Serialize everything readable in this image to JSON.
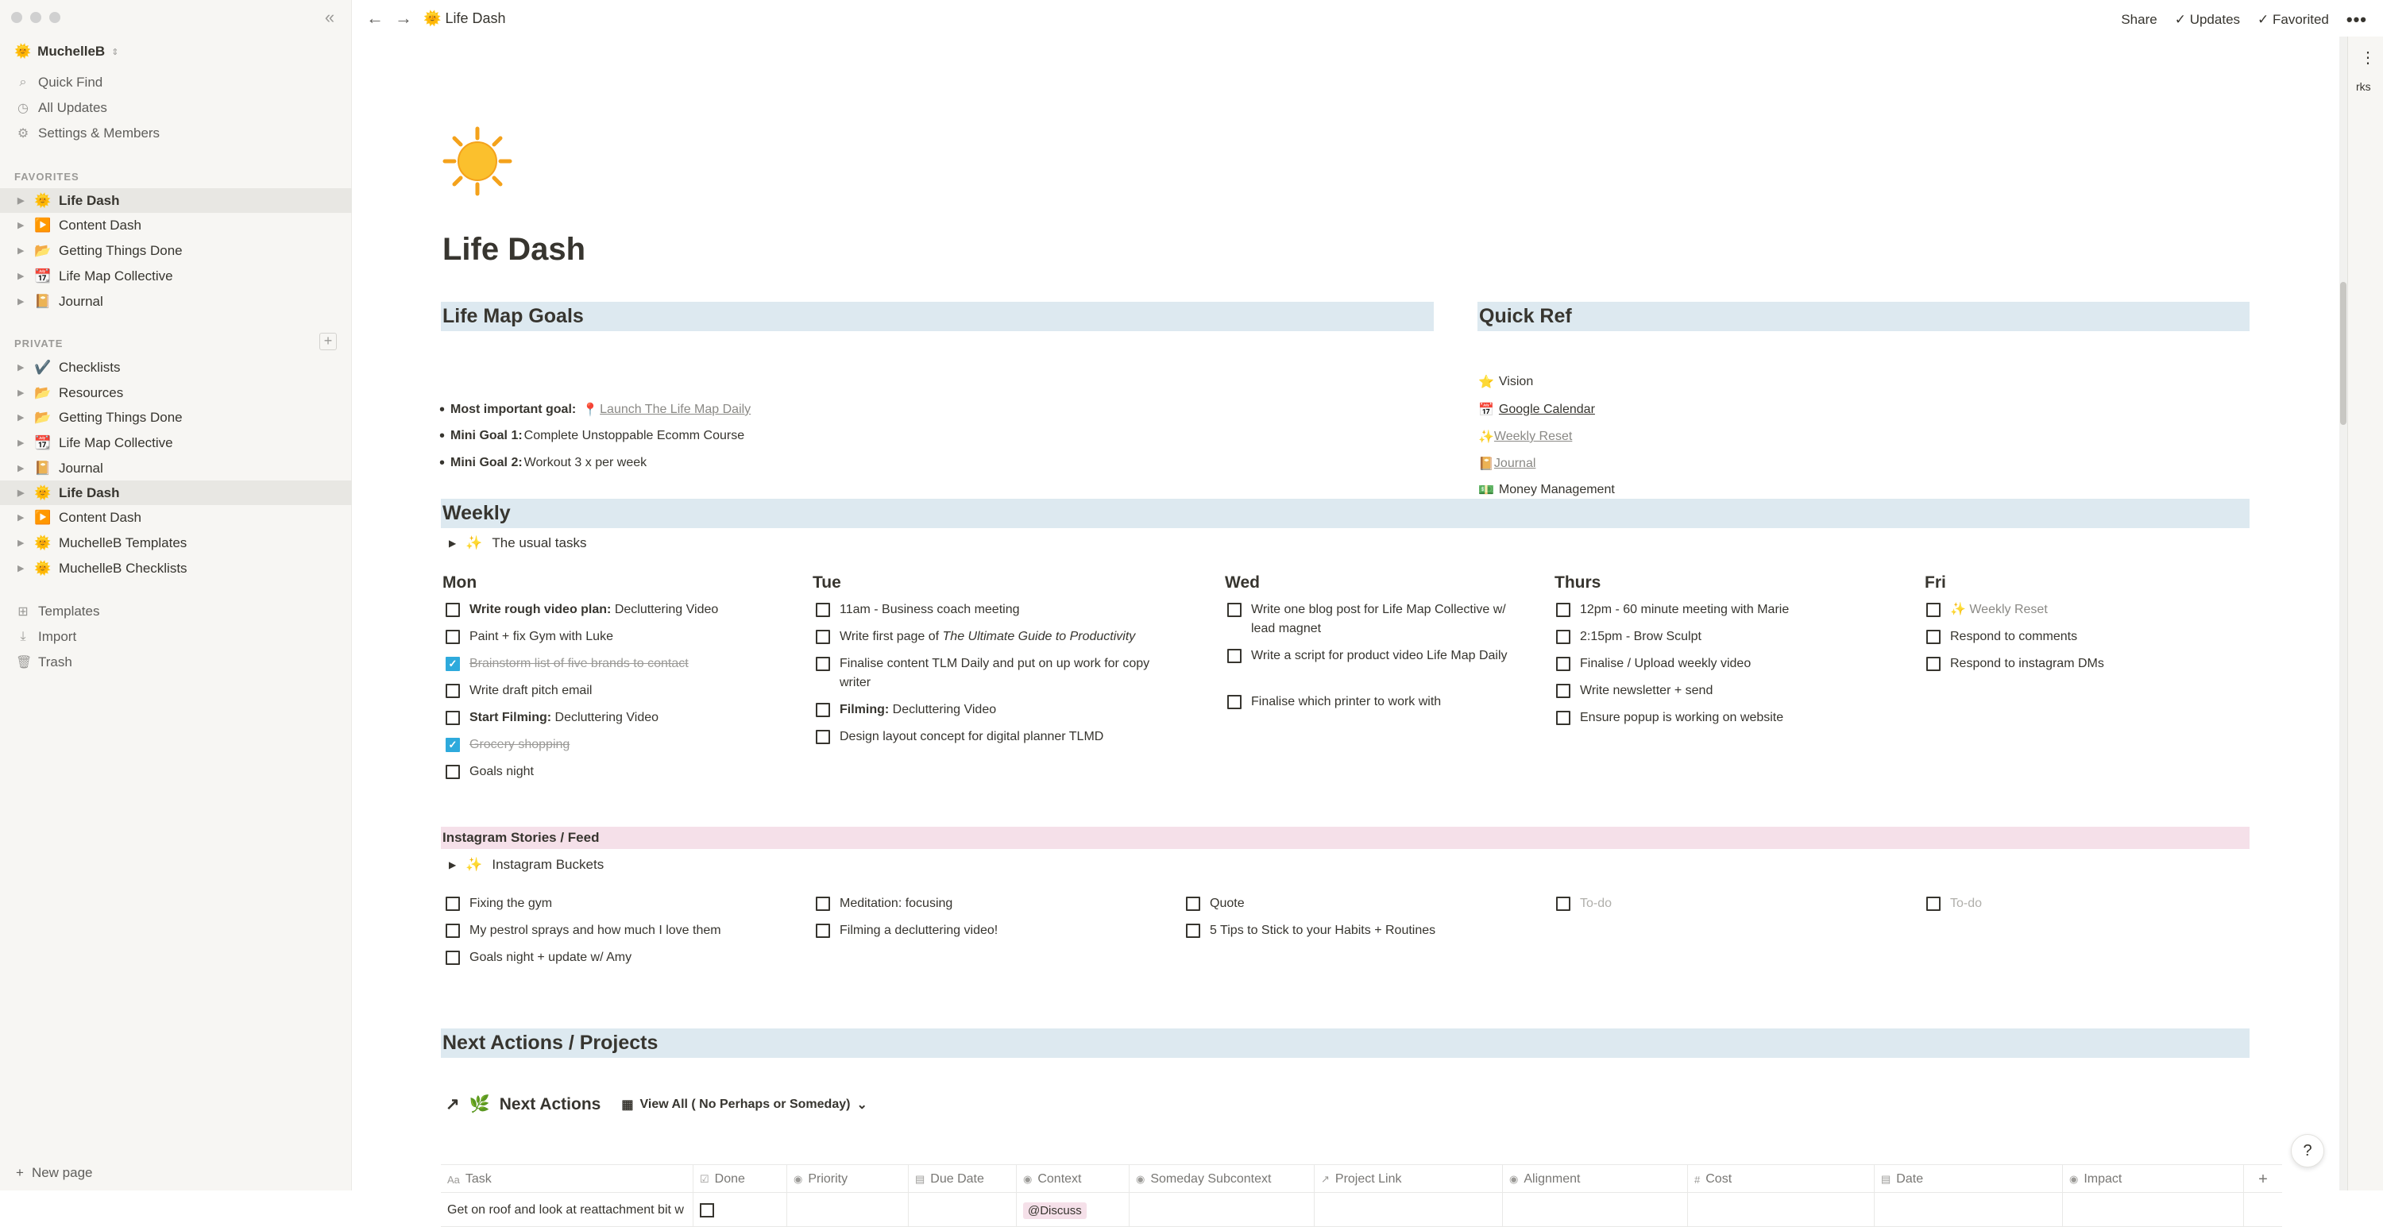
{
  "sidebar": {
    "workspace": "MuchelleB",
    "quick_find": "Quick Find",
    "all_updates": "All Updates",
    "settings": "Settings & Members",
    "favorites_title": "FAVORITES",
    "favorites": [
      {
        "emoji": "🌞",
        "label": "Life Dash"
      },
      {
        "emoji": "▶️",
        "label": "Content Dash"
      },
      {
        "emoji": "📂",
        "label": "Getting Things Done"
      },
      {
        "emoji": "📆",
        "label": "Life Map Collective"
      },
      {
        "emoji": "📔",
        "label": "Journal"
      }
    ],
    "private_title": "PRIVATE",
    "private": [
      {
        "emoji": "✔️",
        "label": "Checklists"
      },
      {
        "emoji": "📂",
        "label": "Resources"
      },
      {
        "emoji": "📂",
        "label": "Getting Things Done"
      },
      {
        "emoji": "📆",
        "label": "Life Map Collective"
      },
      {
        "emoji": "📔",
        "label": "Journal"
      },
      {
        "emoji": "🌞",
        "label": "Life Dash"
      },
      {
        "emoji": "▶️",
        "label": "Content Dash"
      },
      {
        "emoji": "🌞",
        "label": "MuchelleB Templates"
      },
      {
        "emoji": "🌞",
        "label": "MuchelleB Checklists"
      }
    ],
    "templates": "Templates",
    "import": "Import",
    "trash": "Trash",
    "new_page": "New page"
  },
  "topbar": {
    "breadcrumb": "Life Dash",
    "share": "Share",
    "updates": "Updates",
    "favorited": "Favorited"
  },
  "peek_text": "rks",
  "page": {
    "title": "Life Dash",
    "goals_heading": "Life Map Goals",
    "goals": [
      {
        "label": "Most important goal:",
        "emoji": "📍",
        "text": "Launch The Life Map Daily"
      },
      {
        "label": "Mini Goal 1:",
        "text": "Complete Unstoppable Ecomm Course"
      },
      {
        "label": "Mini Goal 2:",
        "text": "Workout 3 x per week"
      }
    ],
    "quickref_heading": "Quick Ref",
    "quickref": [
      {
        "emoji": "⭐",
        "text": "Vision"
      },
      {
        "emoji": "📅",
        "text": "Google Calendar"
      },
      {
        "emoji": "✨",
        "text": "Weekly Reset"
      },
      {
        "emoji": "📔",
        "text": "Journal"
      },
      {
        "emoji": "💵",
        "text": "Money Management"
      }
    ],
    "weekly_heading": "Weekly",
    "weekly_toggle": "The usual tasks",
    "days": [
      "Mon",
      "Tue",
      "Wed",
      "Thurs",
      "Fri"
    ],
    "mon": [
      {
        "bold": "Write rough video plan:",
        "text": " Decluttering Video"
      },
      {
        "text": "Paint + fix Gym with Luke"
      },
      {
        "text": "Brainstorm list of five brands to contact",
        "done": true
      },
      {
        "text": "Write draft pitch email"
      },
      {
        "bold": "Start Filming:",
        "text": " Decluttering Video"
      },
      {
        "text": "Grocery shopping",
        "done": true
      },
      {
        "text": "Goals night"
      }
    ],
    "tue": [
      {
        "text": "11am - Business coach meeting"
      },
      {
        "text": "Write first page of ",
        "italic": "The Ultimate Guide to Productivity"
      },
      {
        "text": "Finalise content TLM Daily and put on up work for copy writer"
      },
      {
        "bold": "Filming:",
        "text": " Decluttering Video"
      },
      {
        "text": "Design layout concept for digital planner TLMD"
      }
    ],
    "wed": [
      {
        "text": "Write one blog post for Life Map Collective w/ lead magnet"
      },
      {
        "text": "Write a script for product video Life Map Daily"
      },
      {
        "text": "Finalise which printer to work with"
      }
    ],
    "thu": [
      {
        "text": "12pm - 60 minute meeting with Marie"
      },
      {
        "text": "2:15pm - Brow Sculpt"
      },
      {
        "text": "Finalise / Upload weekly video"
      },
      {
        "text": "Write newsletter + send"
      },
      {
        "text": "Ensure popup is working on website"
      }
    ],
    "fri": [
      {
        "text": "✨ Weekly Reset",
        "link": true
      },
      {
        "text": "Respond to comments"
      },
      {
        "text": "Respond to instagram DMs"
      }
    ],
    "insta_heading": "Instagram Stories / Feed",
    "insta_toggle": "Instagram Buckets",
    "insta_cols": [
      [
        "Fixing the gym",
        "My pestrol sprays and how much I love them",
        "Goals night + update w/ Amy"
      ],
      [
        "Meditation: focusing",
        "Filming a decluttering video!"
      ],
      [
        "Quote",
        "5 Tips to Stick to your Habits + Routines"
      ],
      [
        "To-do"
      ],
      [
        "To-do"
      ]
    ],
    "next_heading": "Next Actions / Projects",
    "db_title": "Next Actions",
    "db_view": "View All ( No Perhaps or Someday)",
    "columns": [
      "Task",
      "Done",
      "Priority",
      "Due Date",
      "Context",
      "Someday Subcontext",
      "Project Link",
      "Alignment",
      "Cost",
      "Date",
      "Impact"
    ],
    "first_row": {
      "task": "Get on roof and look at reattachment bit w",
      "context": "@Discuss"
    }
  }
}
